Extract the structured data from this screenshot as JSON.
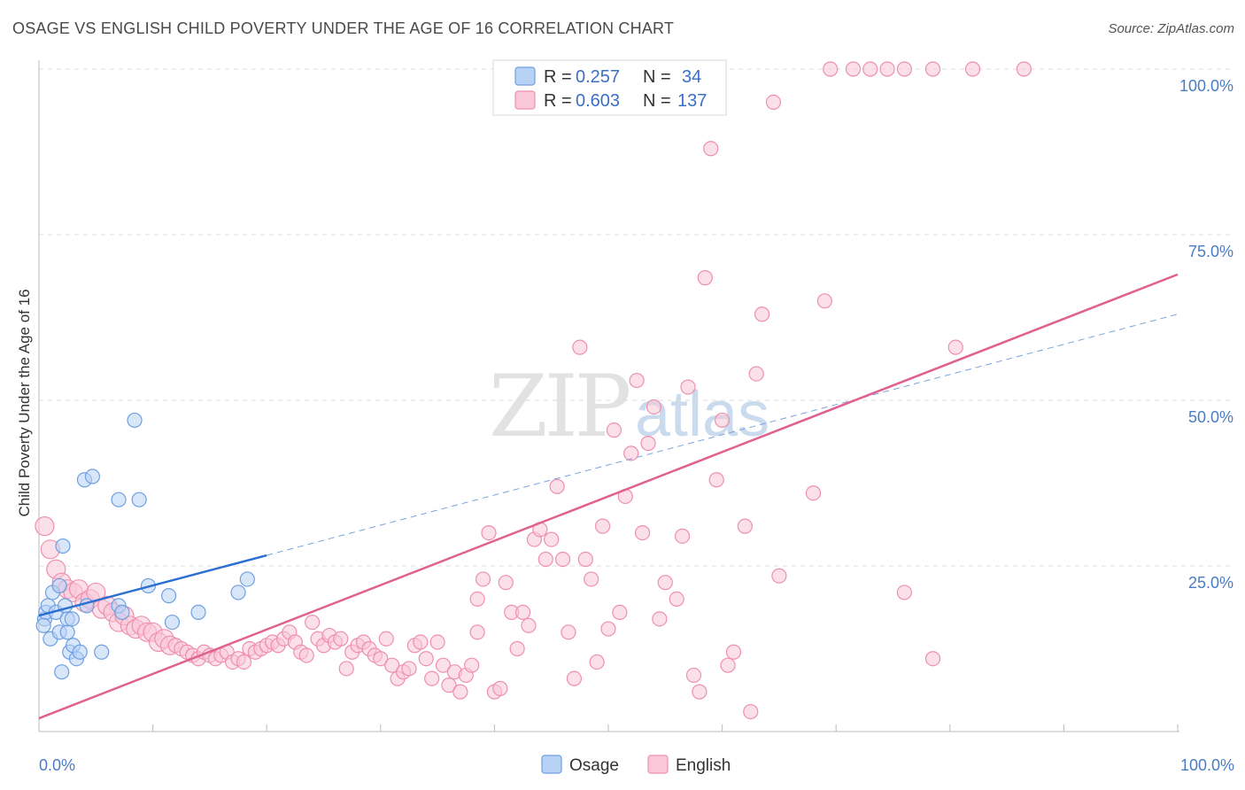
{
  "header": {
    "title": "OSAGE VS ENGLISH CHILD POVERTY UNDER THE AGE OF 16 CORRELATION CHART",
    "source": "Source: ZipAtlas.com"
  },
  "watermark": {
    "zip": "ZIP",
    "atlas": "atlas"
  },
  "legend": {
    "rows": [
      {
        "r_label": "R =",
        "r_value": "0.257",
        "n_label": "N =",
        "n_value": "34",
        "color": "#a8c8f0"
      },
      {
        "r_label": "R =",
        "r_value": "0.603",
        "n_label": "N =",
        "n_value": "137",
        "color": "#f7b8cc"
      }
    ]
  },
  "chart_data": {
    "type": "scatter",
    "title": "OSAGE VS ENGLISH CHILD POVERTY UNDER THE AGE OF 16 CORRELATION CHART",
    "xlabel": "",
    "ylabel": "Child Poverty Under the Age of 16",
    "xlim": [
      0,
      100
    ],
    "ylim": [
      0,
      100
    ],
    "x_tick_labels": [
      "0.0%",
      "100.0%"
    ],
    "y_ticks": [
      25,
      50,
      75,
      100
    ],
    "y_tick_labels": [
      "25.0%",
      "50.0%",
      "75.0%",
      "100.0%"
    ],
    "grid": true,
    "series": [
      {
        "name": "Osage",
        "color": "#6fa0e0",
        "fill": "#b8d2f5",
        "trend_color": "#2b6fd0",
        "trend": {
          "x0": 0,
          "y0": 17.5,
          "x1": 100,
          "y1": 63,
          "solid_until": 20
        },
        "points": [
          [
            0.5,
            17
          ],
          [
            0.6,
            18
          ],
          [
            0.8,
            19
          ],
          [
            1.0,
            14
          ],
          [
            1.2,
            21
          ],
          [
            1.5,
            18
          ],
          [
            1.8,
            22
          ],
          [
            1.8,
            15
          ],
          [
            2.0,
            9
          ],
          [
            2.1,
            28
          ],
          [
            2.3,
            19
          ],
          [
            2.5,
            15
          ],
          [
            2.5,
            17
          ],
          [
            2.7,
            12
          ],
          [
            2.9,
            17
          ],
          [
            3.0,
            13
          ],
          [
            3.3,
            11
          ],
          [
            3.6,
            12
          ],
          [
            4.0,
            38
          ],
          [
            4.2,
            19
          ],
          [
            4.7,
            38.5
          ],
          [
            5.5,
            12
          ],
          [
            7.0,
            35
          ],
          [
            7.0,
            19
          ],
          [
            7.3,
            18
          ],
          [
            8.4,
            47
          ],
          [
            8.8,
            35
          ],
          [
            9.6,
            22
          ],
          [
            11.4,
            20.5
          ],
          [
            11.7,
            16.5
          ],
          [
            14.0,
            18
          ],
          [
            17.5,
            21
          ],
          [
            18.3,
            23
          ],
          [
            0.4,
            16
          ]
        ]
      },
      {
        "name": "English",
        "color": "#ee8fae",
        "fill": "#f9c7d7",
        "trend_color": "#e0608f",
        "trend": {
          "x0": 0,
          "y0": 2,
          "x1": 100,
          "y1": 69
        },
        "points": [
          [
            0.5,
            31
          ],
          [
            1.0,
            27.5
          ],
          [
            1.5,
            24.5
          ],
          [
            2.0,
            22.5
          ],
          [
            2.5,
            21.5
          ],
          [
            3.0,
            21
          ],
          [
            3.5,
            21.5
          ],
          [
            4.0,
            19.5
          ],
          [
            4.5,
            20
          ],
          [
            5.0,
            21
          ],
          [
            5.5,
            18.5
          ],
          [
            6.0,
            19
          ],
          [
            6.5,
            18
          ],
          [
            7.0,
            16.5
          ],
          [
            7.5,
            17.5
          ],
          [
            8.0,
            16
          ],
          [
            8.5,
            15.5
          ],
          [
            9.0,
            16
          ],
          [
            9.5,
            15
          ],
          [
            10.0,
            15
          ],
          [
            10.5,
            13.5
          ],
          [
            11.0,
            14
          ],
          [
            11.5,
            13
          ],
          [
            12.0,
            13
          ],
          [
            12.5,
            12.5
          ],
          [
            13.0,
            12
          ],
          [
            13.5,
            11.5
          ],
          [
            14.0,
            11
          ],
          [
            14.5,
            12
          ],
          [
            15.0,
            11.5
          ],
          [
            15.5,
            11
          ],
          [
            16.0,
            11.5
          ],
          [
            16.5,
            12
          ],
          [
            17.0,
            10.5
          ],
          [
            17.5,
            11
          ],
          [
            18.0,
            10.5
          ],
          [
            18.5,
            12.5
          ],
          [
            19.0,
            12
          ],
          [
            19.5,
            12.5
          ],
          [
            20.0,
            13
          ],
          [
            20.5,
            13.5
          ],
          [
            21.0,
            13
          ],
          [
            21.5,
            14
          ],
          [
            22.0,
            15
          ],
          [
            22.5,
            13.5
          ],
          [
            23.0,
            12
          ],
          [
            23.5,
            11.5
          ],
          [
            24.0,
            16.5
          ],
          [
            24.5,
            14
          ],
          [
            25.0,
            13
          ],
          [
            25.5,
            14.5
          ],
          [
            26.0,
            13.5
          ],
          [
            26.5,
            14
          ],
          [
            27.0,
            9.5
          ],
          [
            27.5,
            12
          ],
          [
            28.0,
            13
          ],
          [
            28.5,
            13.5
          ],
          [
            29.0,
            12.5
          ],
          [
            29.5,
            11.5
          ],
          [
            30.0,
            11
          ],
          [
            30.5,
            14
          ],
          [
            31.0,
            10
          ],
          [
            31.5,
            8
          ],
          [
            32.0,
            9
          ],
          [
            32.5,
            9.5
          ],
          [
            33.0,
            13
          ],
          [
            33.5,
            13.5
          ],
          [
            34.0,
            11
          ],
          [
            34.5,
            8
          ],
          [
            35.0,
            13.5
          ],
          [
            35.5,
            10
          ],
          [
            36.0,
            7
          ],
          [
            36.5,
            9
          ],
          [
            37.0,
            6
          ],
          [
            37.5,
            8.5
          ],
          [
            38.0,
            10
          ],
          [
            38.5,
            15
          ],
          [
            38.5,
            20
          ],
          [
            39.0,
            23
          ],
          [
            39.5,
            30
          ],
          [
            40.0,
            6
          ],
          [
            40.5,
            6.5
          ],
          [
            41.0,
            22.5
          ],
          [
            41.5,
            18
          ],
          [
            42.0,
            12.5
          ],
          [
            42.5,
            18
          ],
          [
            43.0,
            16
          ],
          [
            43.5,
            29
          ],
          [
            44.0,
            30.5
          ],
          [
            44.5,
            26
          ],
          [
            45.0,
            29
          ],
          [
            45.5,
            37
          ],
          [
            46.0,
            26
          ],
          [
            46.5,
            15
          ],
          [
            47.0,
            8
          ],
          [
            47.5,
            58
          ],
          [
            48.0,
            26
          ],
          [
            48.5,
            23
          ],
          [
            49.0,
            10.5
          ],
          [
            49.5,
            31
          ],
          [
            50.0,
            15.5
          ],
          [
            50.5,
            45.5
          ],
          [
            51.0,
            18
          ],
          [
            51.5,
            35.5
          ],
          [
            52.0,
            42
          ],
          [
            52.5,
            53
          ],
          [
            53.0,
            30
          ],
          [
            53.5,
            43.5
          ],
          [
            54.0,
            49
          ],
          [
            54.5,
            17
          ],
          [
            55.0,
            22.5
          ],
          [
            56.0,
            20
          ],
          [
            56.5,
            29.5
          ],
          [
            57.0,
            52
          ],
          [
            57.5,
            8.5
          ],
          [
            58.0,
            6
          ],
          [
            58.5,
            68.5
          ],
          [
            59.0,
            88
          ],
          [
            59.5,
            38
          ],
          [
            60.0,
            47
          ],
          [
            60.5,
            10
          ],
          [
            61.0,
            12
          ],
          [
            62.0,
            31
          ],
          [
            62.5,
            3
          ],
          [
            63.0,
            54
          ],
          [
            63.5,
            63
          ],
          [
            64.5,
            95
          ],
          [
            65.0,
            23.5
          ],
          [
            68.0,
            36
          ],
          [
            69.0,
            65
          ],
          [
            69.5,
            100
          ],
          [
            71.5,
            100
          ],
          [
            73.0,
            100
          ],
          [
            74.5,
            100
          ],
          [
            76.0,
            100
          ],
          [
            76.0,
            21
          ],
          [
            78.5,
            100
          ],
          [
            78.5,
            11
          ],
          [
            80.5,
            58
          ],
          [
            82.0,
            100
          ],
          [
            86.5,
            100
          ]
        ]
      }
    ],
    "legend_position": "bottom-center"
  }
}
